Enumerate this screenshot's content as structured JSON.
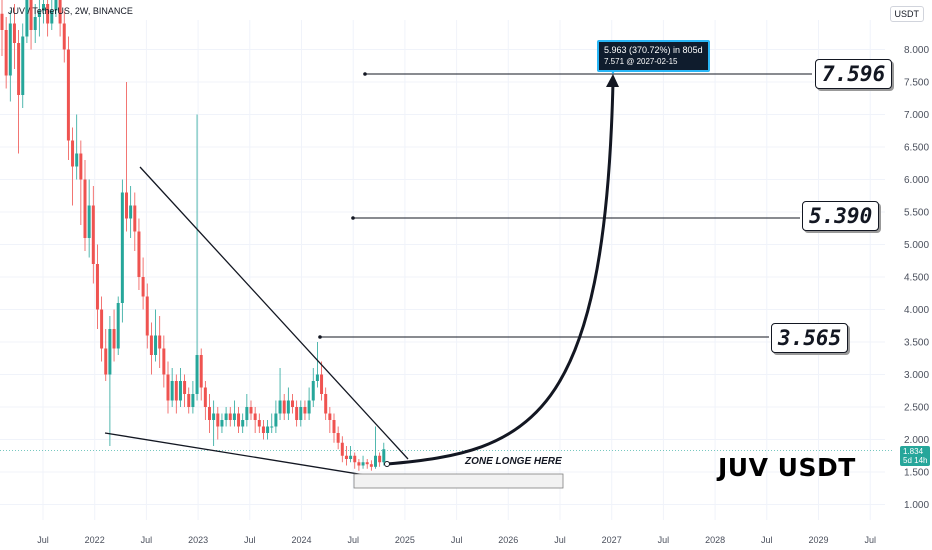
{
  "header": {
    "symbol": "JUV / TetherUS, 2W, BINANCE",
    "currency": "USDT"
  },
  "chart_data": {
    "type": "candlestick",
    "title": "JUV / TetherUS, 2W, BINANCE",
    "ylabel": "USDT",
    "ylim": [
      0.85,
      8.5
    ],
    "y_ticks": [
      "1.000",
      "1.500",
      "2.000",
      "2.500",
      "3.000",
      "3.500",
      "4.000",
      "4.500",
      "5.000",
      "5.500",
      "6.000",
      "6.500",
      "7.000",
      "7.500",
      "8.000"
    ],
    "x_ticks": [
      "Jul",
      "2022",
      "Jul",
      "2023",
      "Jul",
      "2024",
      "Jul",
      "2025",
      "Jul",
      "2026",
      "Jul",
      "2027",
      "Jul",
      "2028",
      "Jul",
      "2029",
      "Jul"
    ],
    "candles": [
      [
        8.55,
        8.3,
        8.9,
        7.9
      ],
      [
        8.3,
        7.6,
        8.5,
        7.4
      ],
      [
        7.6,
        8.4,
        8.6,
        7.2
      ],
      [
        8.4,
        8.1,
        8.7,
        7.7
      ],
      [
        8.1,
        7.3,
        8.3,
        6.4
      ],
      [
        7.3,
        8.2,
        8.4,
        7.1
      ],
      [
        8.2,
        8.8,
        9.0,
        8.1
      ],
      [
        8.8,
        8.3,
        9.0,
        8.0
      ],
      [
        8.3,
        8.5,
        8.7,
        8.1
      ],
      [
        8.5,
        8.6,
        8.8,
        8.2
      ],
      [
        8.6,
        8.7,
        8.9,
        8.4
      ],
      [
        8.7,
        8.4,
        8.9,
        8.2
      ],
      [
        8.4,
        8.6,
        8.8,
        8.3
      ],
      [
        8.6,
        8.8,
        9.0,
        8.5
      ],
      [
        8.8,
        8.4,
        9.0,
        8.2
      ],
      [
        8.4,
        8.0,
        8.6,
        7.8
      ],
      [
        8.0,
        6.6,
        8.2,
        6.3
      ],
      [
        6.6,
        6.2,
        6.8,
        5.6
      ],
      [
        6.2,
        6.4,
        7.0,
        6.0
      ],
      [
        6.4,
        6.0,
        6.6,
        5.3
      ],
      [
        6.0,
        5.1,
        6.3,
        4.9
      ],
      [
        5.1,
        5.6,
        6.0,
        4.8
      ],
      [
        5.6,
        4.7,
        5.9,
        4.4
      ],
      [
        4.7,
        4.0,
        5.0,
        3.7
      ],
      [
        4.0,
        3.4,
        4.2,
        3.2
      ],
      [
        3.4,
        3.0,
        3.7,
        2.9
      ],
      [
        3.0,
        3.7,
        3.9,
        1.9
      ],
      [
        3.7,
        3.4,
        4.0,
        3.2
      ],
      [
        3.4,
        4.1,
        4.2,
        3.3
      ],
      [
        4.1,
        5.8,
        6.0,
        3.8
      ],
      [
        5.8,
        5.4,
        7.5,
        5.2
      ],
      [
        5.4,
        5.6,
        5.9,
        5.1
      ],
      [
        5.6,
        5.2,
        5.8,
        4.9
      ],
      [
        5.2,
        4.5,
        5.4,
        4.3
      ],
      [
        4.5,
        4.2,
        4.8,
        4.0
      ],
      [
        4.2,
        3.6,
        4.4,
        3.4
      ],
      [
        3.6,
        3.3,
        3.8,
        3.0
      ],
      [
        3.3,
        3.6,
        4.0,
        3.2
      ],
      [
        3.6,
        3.4,
        3.9,
        3.1
      ],
      [
        3.4,
        3.0,
        3.6,
        2.8
      ],
      [
        3.0,
        2.6,
        3.2,
        2.4
      ],
      [
        2.6,
        2.9,
        3.1,
        2.5
      ],
      [
        2.9,
        2.6,
        3.0,
        2.4
      ],
      [
        2.6,
        2.9,
        3.1,
        2.5
      ],
      [
        2.9,
        2.7,
        3.0,
        2.5
      ],
      [
        2.7,
        2.5,
        2.8,
        2.4
      ],
      [
        2.5,
        2.7,
        2.9,
        2.4
      ],
      [
        2.7,
        3.3,
        7.0,
        2.6
      ],
      [
        3.3,
        2.8,
        3.4,
        2.6
      ],
      [
        2.8,
        2.5,
        2.9,
        2.3
      ],
      [
        2.5,
        2.3,
        2.7,
        2.1
      ],
      [
        2.3,
        2.4,
        2.6,
        1.9
      ],
      [
        2.4,
        2.2,
        2.5,
        2.0
      ],
      [
        2.2,
        2.3,
        2.4,
        2.1
      ],
      [
        2.3,
        2.4,
        2.5,
        2.2
      ],
      [
        2.4,
        2.3,
        2.5,
        2.2
      ],
      [
        2.3,
        2.4,
        2.6,
        2.2
      ],
      [
        2.4,
        2.2,
        2.5,
        2.1
      ],
      [
        2.2,
        2.3,
        2.4,
        2.1
      ],
      [
        2.3,
        2.5,
        2.7,
        2.2
      ],
      [
        2.5,
        2.4,
        2.6,
        2.3
      ],
      [
        2.4,
        2.3,
        2.5,
        2.1
      ],
      [
        2.3,
        2.2,
        2.4,
        2.1
      ],
      [
        2.2,
        2.1,
        2.3,
        2.0
      ],
      [
        2.1,
        2.2,
        2.3,
        2.0
      ],
      [
        2.2,
        2.2,
        2.4,
        2.1
      ],
      [
        2.2,
        2.4,
        2.6,
        2.1
      ],
      [
        2.4,
        2.6,
        3.1,
        2.3
      ],
      [
        2.6,
        2.4,
        2.7,
        2.3
      ],
      [
        2.4,
        2.6,
        2.8,
        2.3
      ],
      [
        2.6,
        2.5,
        2.7,
        2.4
      ],
      [
        2.5,
        2.3,
        2.6,
        2.2
      ],
      [
        2.3,
        2.5,
        2.6,
        2.2
      ],
      [
        2.5,
        2.4,
        2.6,
        2.3
      ],
      [
        2.4,
        2.6,
        2.8,
        2.3
      ],
      [
        2.6,
        2.9,
        3.1,
        2.5
      ],
      [
        2.9,
        3.0,
        3.5,
        2.8
      ],
      [
        3.0,
        2.7,
        3.2,
        2.6
      ],
      [
        2.7,
        2.4,
        2.8,
        2.3
      ],
      [
        2.4,
        2.3,
        2.5,
        2.1
      ],
      [
        2.3,
        2.1,
        2.4,
        1.95
      ],
      [
        2.1,
        1.95,
        2.2,
        1.85
      ],
      [
        1.95,
        1.75,
        2.05,
        1.65
      ],
      [
        1.75,
        1.7,
        1.9,
        1.6
      ],
      [
        1.7,
        1.75,
        1.9,
        1.65
      ],
      [
        1.75,
        1.65,
        1.8,
        1.55
      ],
      [
        1.65,
        1.6,
        1.7,
        1.52
      ],
      [
        1.6,
        1.65,
        1.75,
        1.55
      ],
      [
        1.65,
        1.62,
        1.7,
        1.55
      ],
      [
        1.62,
        1.58,
        1.68,
        1.52
      ],
      [
        1.58,
        1.75,
        2.2,
        1.55
      ],
      [
        1.75,
        1.65,
        1.8,
        1.58
      ],
      [
        1.65,
        1.85,
        1.95,
        1.6
      ]
    ],
    "last_price": "1.834",
    "countdown": "5d 14h",
    "annotations": {
      "levels": [
        "3.565",
        "5.390",
        "7.596"
      ],
      "projection_label": "5.963 (370.72%) in 805d",
      "projection_sub": "7.571 @ 2027-02-15",
      "zone_label": "ZONE LONGE HERE",
      "ticker_label": "JUV USDT"
    },
    "colors": {
      "up": "#26a69a",
      "down": "#ef5350",
      "grid": "#f0f3fa",
      "line": "#131722",
      "callout_border": "#29b6f6"
    }
  }
}
